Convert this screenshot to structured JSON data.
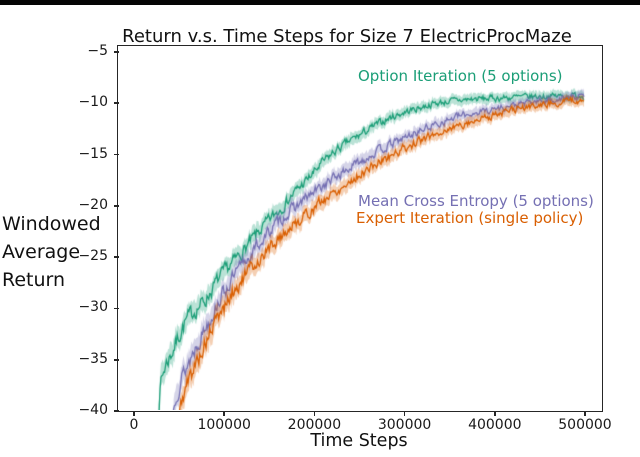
{
  "frame": {
    "top_bar_color": "#050505",
    "axis_color": "#262626",
    "background": "#ffffff"
  },
  "chart_data": {
    "type": "line",
    "title": "Return v.s. Time Steps for Size 7 ElectricProcMaze",
    "xlabel": "Time Steps",
    "ylabel_lines": [
      "Windowed",
      "Average",
      "Return"
    ],
    "xlim": [
      -15500,
      521000
    ],
    "ylim": [
      -40,
      -4.5
    ],
    "grid": false,
    "legend_position": "inline-annotations",
    "x_ticks": [
      0,
      100000,
      200000,
      300000,
      400000,
      500000
    ],
    "x_tick_labels": [
      "0",
      "100000",
      "200000",
      "300000",
      "400000",
      "500000"
    ],
    "y_ticks": [
      -5,
      -10,
      -15,
      -20,
      -25,
      -30,
      -35,
      -40
    ],
    "y_tick_labels": [
      "−5",
      "−10",
      "−15",
      "−20",
      "−25",
      "−30",
      "−35",
      "−40"
    ],
    "series": [
      {
        "name": "Option Iteration (5 options)",
        "color": "#1b9e77",
        "seed": 7,
        "band_alpha": 0.3,
        "points": [
          [
            28000,
            -40
          ],
          [
            31000,
            -37.2
          ],
          [
            36000,
            -35.6
          ],
          [
            44000,
            -34.2
          ],
          [
            50000,
            -32.9
          ],
          [
            58000,
            -31.4
          ],
          [
            68000,
            -30.3
          ],
          [
            80000,
            -29.3
          ],
          [
            92000,
            -27.6
          ],
          [
            105000,
            -26.2
          ],
          [
            120000,
            -24.7
          ],
          [
            135000,
            -23.1
          ],
          [
            150000,
            -21.6
          ],
          [
            165000,
            -20.2
          ],
          [
            180000,
            -18.7
          ],
          [
            195000,
            -17.4
          ],
          [
            210000,
            -15.9
          ],
          [
            225000,
            -14.7
          ],
          [
            240000,
            -13.8
          ],
          [
            255000,
            -13.0
          ],
          [
            270000,
            -12.2
          ],
          [
            285000,
            -11.5
          ],
          [
            300000,
            -11.0
          ],
          [
            315000,
            -10.6
          ],
          [
            330000,
            -10.2
          ],
          [
            350000,
            -9.9
          ],
          [
            375000,
            -9.7
          ],
          [
            400000,
            -9.6
          ],
          [
            430000,
            -9.5
          ],
          [
            460000,
            -9.4
          ],
          [
            480000,
            -9.4
          ],
          [
            500000,
            -9.3
          ]
        ]
      },
      {
        "name": "Mean Cross Entropy (5 options)",
        "color": "#7570b3",
        "seed": 13,
        "band_alpha": 0.3,
        "points": [
          [
            45000,
            -40
          ],
          [
            48000,
            -38.2
          ],
          [
            55000,
            -36.6
          ],
          [
            63000,
            -35.1
          ],
          [
            72000,
            -33.3
          ],
          [
            82000,
            -31.6
          ],
          [
            95000,
            -29.3
          ],
          [
            108000,
            -27.5
          ],
          [
            122000,
            -25.8
          ],
          [
            138000,
            -24.0
          ],
          [
            155000,
            -22.2
          ],
          [
            172000,
            -20.8
          ],
          [
            190000,
            -19.5
          ],
          [
            208000,
            -18.3
          ],
          [
            226000,
            -17.2
          ],
          [
            244000,
            -16.2
          ],
          [
            262000,
            -15.2
          ],
          [
            280000,
            -14.4
          ],
          [
            300000,
            -13.5
          ],
          [
            320000,
            -12.7
          ],
          [
            340000,
            -12.0
          ],
          [
            360000,
            -11.4
          ],
          [
            385000,
            -10.9
          ],
          [
            410000,
            -10.5
          ],
          [
            435000,
            -10.1
          ],
          [
            460000,
            -9.8
          ],
          [
            480000,
            -9.6
          ],
          [
            500000,
            -9.4
          ]
        ]
      },
      {
        "name": "Expert Iteration (single policy)",
        "color": "#d95f02",
        "seed": 5,
        "band_alpha": 0.3,
        "points": [
          [
            52000,
            -40
          ],
          [
            56000,
            -38.5
          ],
          [
            64000,
            -36.6
          ],
          [
            74000,
            -34.6
          ],
          [
            86000,
            -32.4
          ],
          [
            98000,
            -30.4
          ],
          [
            112000,
            -28.4
          ],
          [
            128000,
            -26.5
          ],
          [
            145000,
            -24.8
          ],
          [
            162000,
            -23.2
          ],
          [
            180000,
            -21.8
          ],
          [
            198000,
            -20.5
          ],
          [
            216000,
            -19.2
          ],
          [
            234000,
            -18.1
          ],
          [
            252000,
            -17.0
          ],
          [
            270000,
            -16.0
          ],
          [
            290000,
            -15.0
          ],
          [
            310000,
            -14.1
          ],
          [
            330000,
            -13.3
          ],
          [
            350000,
            -12.6
          ],
          [
            370000,
            -12.0
          ],
          [
            390000,
            -11.5
          ],
          [
            410000,
            -11.0
          ],
          [
            430000,
            -10.6
          ],
          [
            450000,
            -10.3
          ],
          [
            470000,
            -10.0
          ],
          [
            485000,
            -9.9
          ],
          [
            500000,
            -9.8
          ]
        ]
      }
    ],
    "annotations": [
      {
        "text": "Option Iteration (5 options)",
        "color": "#1b9e77",
        "left": 358,
        "top": 67
      },
      {
        "text": "Mean Cross Entropy (5 options)",
        "color": "#7570b3",
        "left": 358,
        "top": 192
      },
      {
        "text": "Expert Iteration (single policy)",
        "color": "#d95f02",
        "left": 356,
        "top": 209
      }
    ]
  }
}
